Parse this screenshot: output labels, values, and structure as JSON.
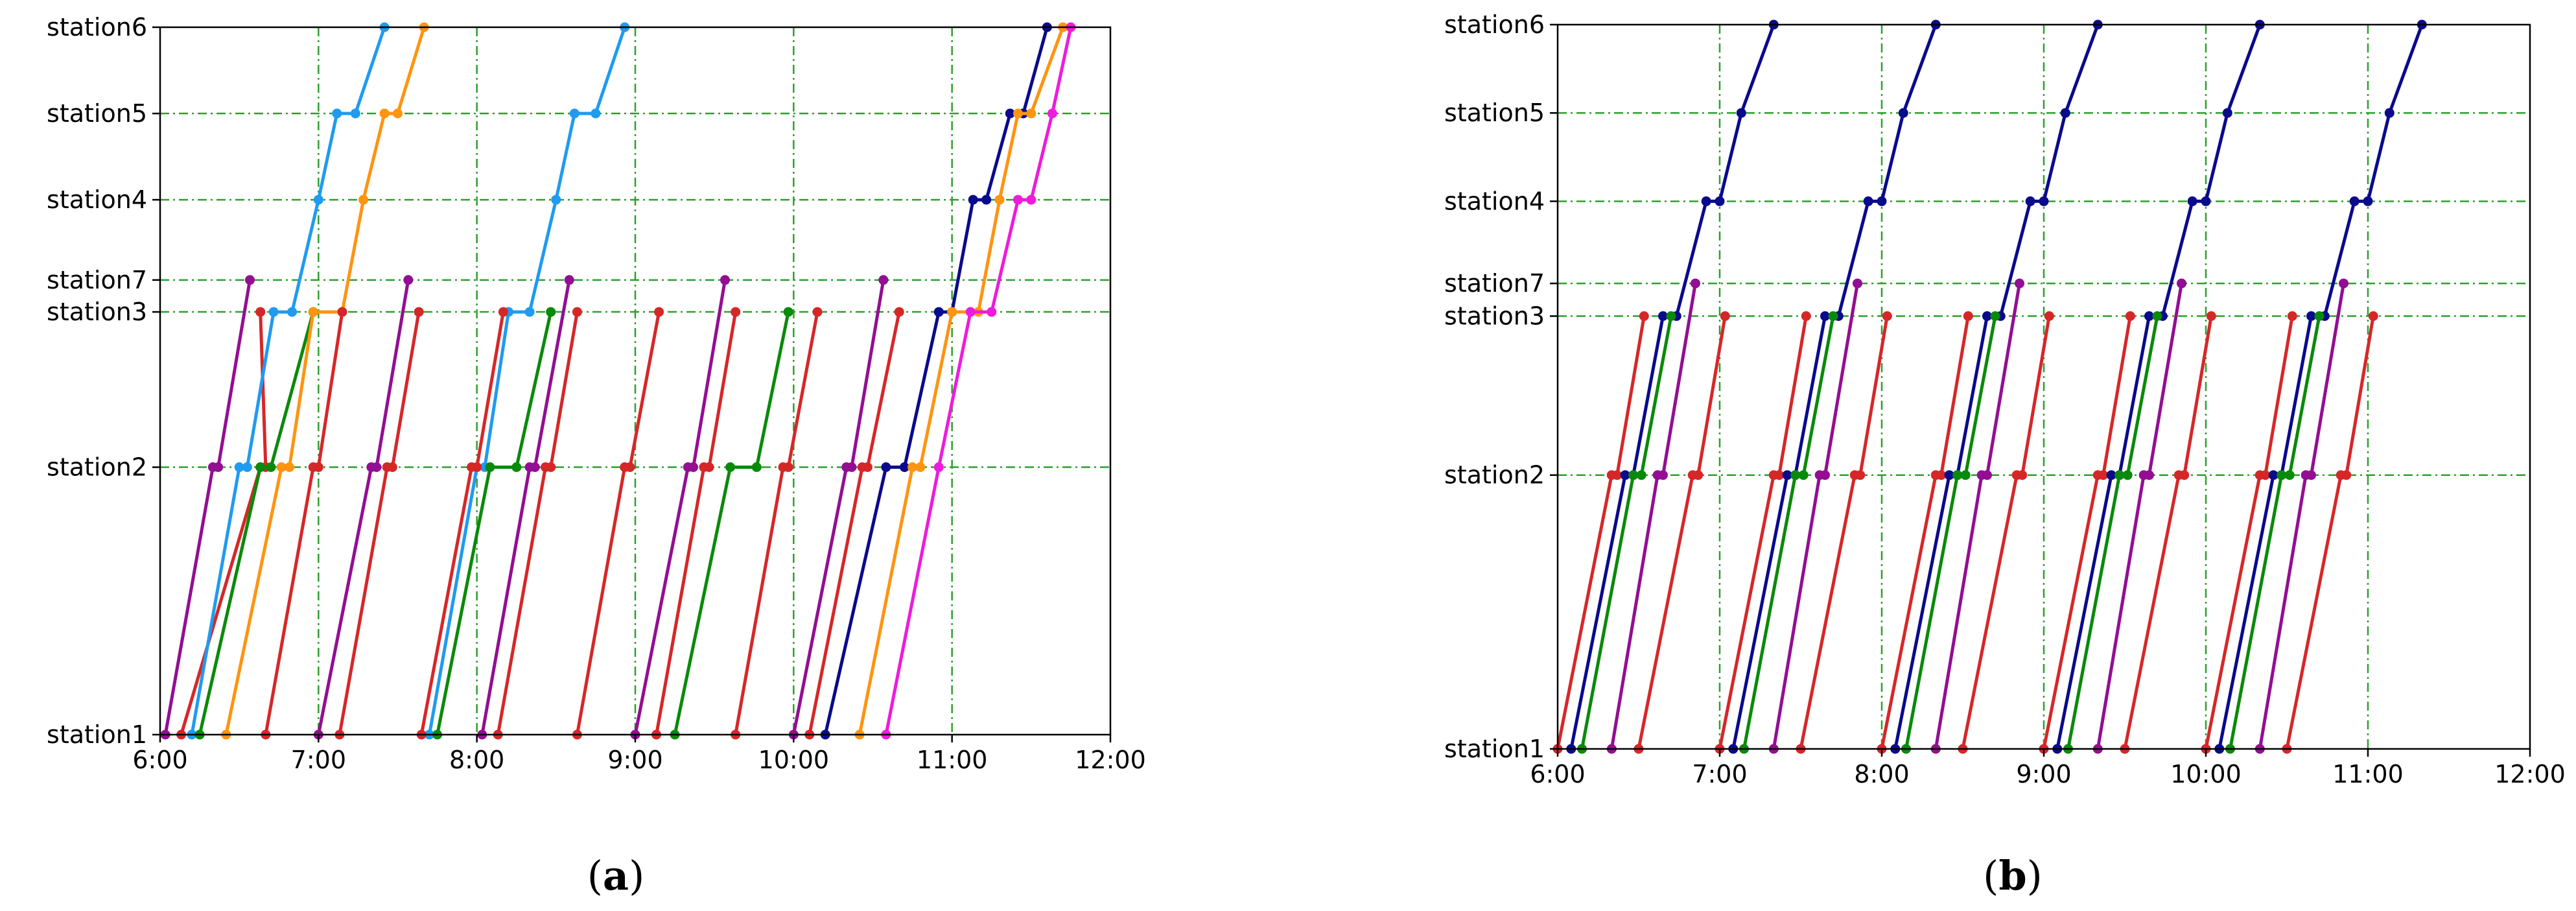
{
  "figure": {
    "panel_labels": [
      {
        "open": "(",
        "letter": "a",
        "close": ")"
      },
      {
        "open": "(",
        "letter": "b",
        "close": ")"
      }
    ]
  },
  "colors": {
    "red": "#d62728",
    "purple": "#930e93",
    "green": "#0a8a0a",
    "navy": "#0a0a8c",
    "lightblue": "#1f9bf0",
    "orange": "#ff9410",
    "magenta": "#ee1bdc",
    "grid": "#2ca02c"
  },
  "chart_data": [
    {
      "type": "line",
      "panel": "a",
      "title": "",
      "xlabel": "",
      "ylabel": "",
      "xlim": [
        "6:00",
        "12:00"
      ],
      "x_ticks": [
        "6:00",
        "7:00",
        "8:00",
        "9:00",
        "10:00",
        "11:00",
        "12:00"
      ],
      "y_ticks": [
        {
          "label": "station1",
          "pos": 0
        },
        {
          "label": "station2",
          "pos": 3.1
        },
        {
          "label": "station3",
          "pos": 4.9
        },
        {
          "label": "station7",
          "pos": 5.27
        },
        {
          "label": "station4",
          "pos": 6.2
        },
        {
          "label": "station5",
          "pos": 7.2
        },
        {
          "label": "station6",
          "pos": 8.2
        }
      ],
      "grid": true,
      "series": [
        {
          "color": "red",
          "points": [
            [
              "6:08",
              0
            ],
            [
              "6:38",
              3.1
            ],
            [
              "6:40",
              3.1
            ],
            [
              "6:38",
              4.9
            ]
          ]
        },
        {
          "color": "purple",
          "points": [
            [
              "6:02",
              0
            ],
            [
              "6:20",
              3.1
            ],
            [
              "6:22",
              3.1
            ],
            [
              "6:34",
              5.27
            ]
          ]
        },
        {
          "color": "lightblue",
          "points": [
            [
              "6:12",
              0
            ],
            [
              "6:30",
              3.1
            ],
            [
              "6:33",
              3.1
            ],
            [
              "6:43",
              4.9
            ],
            [
              "6:50",
              4.9
            ],
            [
              "7:00",
              6.2
            ],
            [
              "7:07",
              7.2
            ],
            [
              "7:14",
              7.2
            ],
            [
              "7:25",
              8.2
            ]
          ]
        },
        {
          "color": "green",
          "points": [
            [
              "6:15",
              0
            ],
            [
              "6:38",
              3.1
            ],
            [
              "6:42",
              3.1
            ],
            [
              "6:58",
              4.9
            ]
          ]
        },
        {
          "color": "orange",
          "points": [
            [
              "6:25",
              0
            ],
            [
              "6:46",
              3.1
            ],
            [
              "6:49",
              3.1
            ],
            [
              "6:58",
              4.9
            ],
            [
              "7:09",
              4.9
            ],
            [
              "7:17",
              6.2
            ],
            [
              "7:25",
              7.2
            ],
            [
              "7:30",
              7.2
            ],
            [
              "7:40",
              8.2
            ]
          ]
        },
        {
          "color": "red",
          "points": [
            [
              "6:40",
              0
            ],
            [
              "6:58",
              3.1
            ],
            [
              "7:00",
              3.1
            ],
            [
              "7:09",
              4.9
            ]
          ]
        },
        {
          "color": "purple",
          "points": [
            [
              "7:00",
              0
            ],
            [
              "7:20",
              3.1
            ],
            [
              "7:22",
              3.1
            ],
            [
              "7:34",
              5.27
            ]
          ]
        },
        {
          "color": "red",
          "points": [
            [
              "7:08",
              0
            ],
            [
              "7:26",
              3.1
            ],
            [
              "7:28",
              3.1
            ],
            [
              "7:38",
              4.9
            ]
          ]
        },
        {
          "color": "lightblue",
          "points": [
            [
              "7:42",
              0
            ],
            [
              "8:00",
              3.1
            ],
            [
              "8:03",
              3.1
            ],
            [
              "8:12",
              4.9
            ],
            [
              "8:20",
              4.9
            ],
            [
              "8:30",
              6.2
            ],
            [
              "8:37",
              7.2
            ],
            [
              "8:45",
              7.2
            ],
            [
              "8:56",
              8.2
            ]
          ]
        },
        {
          "color": "red",
          "points": [
            [
              "7:39",
              0
            ],
            [
              "7:58",
              3.1
            ],
            [
              "8:00",
              3.1
            ],
            [
              "8:10",
              4.9
            ]
          ]
        },
        {
          "color": "green",
          "points": [
            [
              "7:45",
              0
            ],
            [
              "8:05",
              3.1
            ],
            [
              "8:15",
              3.1
            ],
            [
              "8:28",
              4.9
            ]
          ]
        },
        {
          "color": "red",
          "points": [
            [
              "8:08",
              0
            ],
            [
              "8:26",
              3.1
            ],
            [
              "8:28",
              3.1
            ],
            [
              "8:38",
              4.9
            ]
          ]
        },
        {
          "color": "purple",
          "points": [
            [
              "8:02",
              0
            ],
            [
              "8:20",
              3.1
            ],
            [
              "8:22",
              3.1
            ],
            [
              "8:35",
              5.27
            ]
          ]
        },
        {
          "color": "red",
          "points": [
            [
              "8:38",
              0
            ],
            [
              "8:56",
              3.1
            ],
            [
              "8:58",
              3.1
            ],
            [
              "9:09",
              4.9
            ]
          ]
        },
        {
          "color": "purple",
          "points": [
            [
              "9:00",
              0
            ],
            [
              "9:20",
              3.1
            ],
            [
              "9:22",
              3.1
            ],
            [
              "9:34",
              5.27
            ]
          ]
        },
        {
          "color": "red",
          "points": [
            [
              "9:08",
              0
            ],
            [
              "9:26",
              3.1
            ],
            [
              "9:28",
              3.1
            ],
            [
              "9:38",
              4.9
            ]
          ]
        },
        {
          "color": "green",
          "points": [
            [
              "9:15",
              0
            ],
            [
              "9:36",
              3.1
            ],
            [
              "9:46",
              3.1
            ],
            [
              "9:58",
              4.9
            ]
          ]
        },
        {
          "color": "red",
          "points": [
            [
              "9:38",
              0
            ],
            [
              "9:56",
              3.1
            ],
            [
              "9:58",
              3.1
            ],
            [
              "10:09",
              4.9
            ]
          ]
        },
        {
          "color": "purple",
          "points": [
            [
              "10:00",
              0
            ],
            [
              "10:20",
              3.1
            ],
            [
              "10:22",
              3.1
            ],
            [
              "10:34",
              5.27
            ]
          ]
        },
        {
          "color": "red",
          "points": [
            [
              "10:06",
              0
            ],
            [
              "10:26",
              3.1
            ],
            [
              "10:28",
              3.1
            ],
            [
              "10:40",
              4.9
            ]
          ]
        },
        {
          "color": "navy",
          "points": [
            [
              "10:12",
              0
            ],
            [
              "10:35",
              3.1
            ],
            [
              "10:42",
              3.1
            ],
            [
              "10:55",
              4.9
            ],
            [
              "11:00",
              4.9
            ],
            [
              "11:08",
              6.2
            ],
            [
              "11:13",
              6.2
            ],
            [
              "11:22",
              7.2
            ],
            [
              "11:27",
              7.2
            ],
            [
              "11:36",
              8.2
            ]
          ]
        },
        {
          "color": "orange",
          "points": [
            [
              "10:25",
              0
            ],
            [
              "10:45",
              3.1
            ],
            [
              "10:48",
              3.1
            ],
            [
              "11:00",
              4.9
            ],
            [
              "11:10",
              4.9
            ],
            [
              "11:18",
              6.2
            ],
            [
              "11:25",
              7.2
            ],
            [
              "11:30",
              7.2
            ],
            [
              "11:42",
              8.2
            ]
          ]
        },
        {
          "color": "magenta",
          "points": [
            [
              "10:35",
              0
            ],
            [
              "10:55",
              3.1
            ],
            [
              "11:07",
              4.9
            ],
            [
              "11:15",
              4.9
            ],
            [
              "11:25",
              6.2
            ],
            [
              "11:30",
              6.2
            ],
            [
              "11:38",
              7.2
            ],
            [
              "11:45",
              8.2
            ]
          ]
        }
      ]
    },
    {
      "type": "line",
      "panel": "b",
      "title": "",
      "xlabel": "",
      "ylabel": "",
      "xlim": [
        "6:00",
        "12:00"
      ],
      "x_ticks": [
        "6:00",
        "7:00",
        "8:00",
        "9:00",
        "10:00",
        "11:00",
        "12:00"
      ],
      "y_ticks": [
        {
          "label": "station1",
          "pos": 0
        },
        {
          "label": "station2",
          "pos": 3.1
        },
        {
          "label": "station3",
          "pos": 4.9
        },
        {
          "label": "station7",
          "pos": 5.27
        },
        {
          "label": "station4",
          "pos": 6.2
        },
        {
          "label": "station5",
          "pos": 7.2
        },
        {
          "label": "station6",
          "pos": 8.2
        }
      ],
      "grid": true,
      "series_template": [
        {
          "color": "red",
          "offsets_min": [
            0,
            20,
            22,
            32
          ],
          "pos": [
            0,
            3.1,
            3.1,
            4.9
          ]
        },
        {
          "color": "navy",
          "offsets_min": [
            5,
            25,
            28,
            39,
            44,
            55,
            60,
            68,
            80
          ],
          "pos": [
            0,
            3.1,
            3.1,
            4.9,
            4.9,
            6.2,
            6.2,
            7.2,
            8.2
          ]
        },
        {
          "color": "green",
          "offsets_min": [
            9,
            28,
            31,
            42
          ],
          "pos": [
            0,
            3.1,
            3.1,
            4.9
          ]
        },
        {
          "color": "purple",
          "offsets_min": [
            20,
            37,
            39,
            51
          ],
          "pos": [
            0,
            3.1,
            3.1,
            5.27
          ]
        },
        {
          "color": "red",
          "offsets_min": [
            30,
            50,
            52,
            62
          ],
          "pos": [
            0,
            3.1,
            3.1,
            4.9
          ]
        }
      ],
      "series_starts": [
        "6:00",
        "7:00",
        "8:00",
        "9:00",
        "10:00"
      ]
    }
  ]
}
